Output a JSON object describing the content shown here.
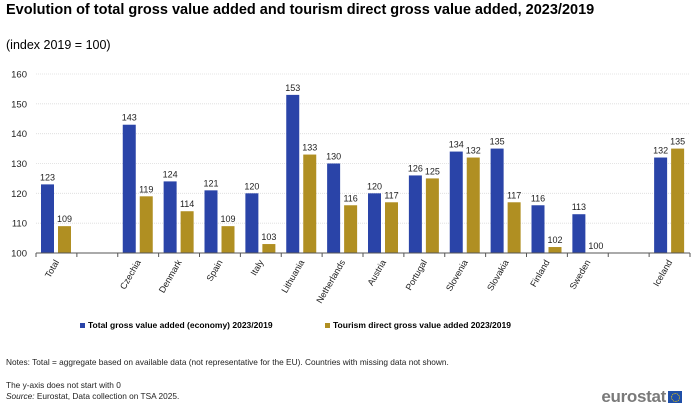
{
  "chart_data": {
    "type": "bar",
    "title": "Evolution of total gross value added and tourism direct gross value added, 2023/2019",
    "subtitle": "(index 2019 = 100)",
    "categories": [
      "Total",
      "",
      "Czechia",
      "Denmark",
      "Spain",
      "Italy",
      "Lithuania",
      "Netherlands",
      "Austria",
      "Portugal",
      "Slovenia",
      "Slovakia",
      "Finland",
      "Sweden",
      "",
      "Iceland"
    ],
    "series": [
      {
        "name": "Total gross value added (economy) 2023/2019",
        "color": "#2a44a8",
        "values": [
          123,
          null,
          143,
          124,
          121,
          120,
          153,
          130,
          120,
          126,
          134,
          135,
          116,
          113,
          null,
          132
        ]
      },
      {
        "name": "Tourism direct gross value added 2023/2019",
        "color": "#b08f22",
        "values": [
          109,
          null,
          119,
          114,
          109,
          103,
          133,
          116,
          117,
          125,
          132,
          117,
          102,
          100,
          null,
          135
        ]
      }
    ],
    "ylim": [
      100,
      160
    ],
    "yticks": [
      100,
      110,
      120,
      130,
      140,
      150,
      160
    ],
    "grid": true,
    "legend": "bottom",
    "xlabel": "",
    "ylabel": ""
  },
  "notes": {
    "line1": "Notes: Total = aggregate based on available data (not representative for the EU). Countries with missing data not shown.",
    "line2": "The y-axis does not start with 0",
    "source_label": "Source:",
    "source_text": " Eurostat, Data collection on TSA 2025."
  },
  "logo": {
    "text": "eurostat"
  }
}
